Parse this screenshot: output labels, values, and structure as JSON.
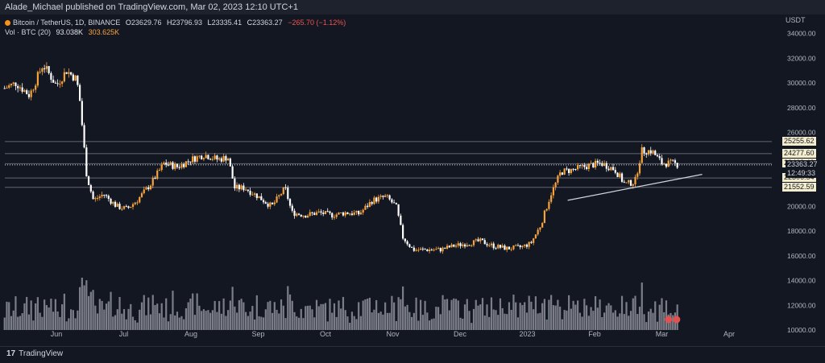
{
  "header": {
    "text": "Alade_Michael published on TradingView.com, Mar 02, 2023 12:10 UTC+1"
  },
  "legend": {
    "symbol": "Bitcoin / TetherUS, 1D, BINANCE",
    "open_label": "O",
    "open": "23629.76",
    "high_label": "H",
    "high": "23796.93",
    "low_label": "L",
    "low": "23335.41",
    "close_label": "C",
    "close": "23363.27",
    "change": "−265.70 (−1.12%)",
    "vol_label": "Vol · BTC (20)",
    "vol_ma": "93.038K",
    "vol_value": "303.625K"
  },
  "axis": {
    "currency": "USDT",
    "y_ticks": [
      "34000.00",
      "32000.00",
      "30000.00",
      "28000.00",
      "26000.00",
      "20000.00",
      "18000.00",
      "16000.00",
      "14000.00",
      "12000.00",
      "10000.00"
    ],
    "y_tick_values": [
      34000,
      32000,
      30000,
      28000,
      26000,
      20000,
      18000,
      16000,
      14000,
      12000,
      10000
    ],
    "x_ticks": [
      "Jun",
      "Jul",
      "Aug",
      "Sep",
      "Oct",
      "Nov",
      "Dec",
      "2023",
      "Feb",
      "Mar",
      "Apr"
    ]
  },
  "price_tags": {
    "levels": [
      {
        "label": "25255.62",
        "value": 25255.62,
        "style": "light"
      },
      {
        "label": "24277.60",
        "value": 24277.6,
        "style": "light"
      },
      {
        "label": "23463.40",
        "value": 23463.4,
        "style": "light"
      },
      {
        "label": "22306.54",
        "value": 22306.54,
        "style": "light"
      },
      {
        "label": "21552.59",
        "value": 21552.59,
        "style": "light"
      }
    ],
    "current_price": "23363.27",
    "countdown": "12:49:33"
  },
  "footer": {
    "brand": "TradingView",
    "logo": "17"
  },
  "colors": {
    "up": "#f7a33c",
    "down": "#ffffff",
    "volume": "#d1d4dc",
    "trendline": "#d1d4dc",
    "level": "#787b86"
  },
  "chart_data": {
    "type": "candlestick",
    "title": "Bitcoin / TetherUS, 1D, BINANCE",
    "ylim": [
      10000,
      34500
    ],
    "x_categories": [
      "Jun",
      "Jul",
      "Aug",
      "Sep",
      "Oct",
      "Nov",
      "Dec",
      "2023",
      "Feb",
      "Mar",
      "Apr"
    ],
    "horizontal_levels": [
      25255.62,
      24277.6,
      23463.4,
      22306.54,
      21552.59
    ],
    "current_price": 23363.27,
    "trendline": [
      {
        "month_index": 7.6,
        "price": 20500
      },
      {
        "month_index": 9.6,
        "price": 22600
      }
    ],
    "price_path": [
      {
        "m": -0.9,
        "p": 34200
      },
      {
        "m": -0.8,
        "p": 29500
      },
      {
        "m": -0.6,
        "p": 30000
      },
      {
        "m": -0.4,
        "p": 29000
      },
      {
        "m": -0.2,
        "p": 31500
      },
      {
        "m": 0.0,
        "p": 29800
      },
      {
        "m": 0.15,
        "p": 31000
      },
      {
        "m": 0.3,
        "p": 30300
      },
      {
        "m": 0.35,
        "p": 28500
      },
      {
        "m": 0.45,
        "p": 22500
      },
      {
        "m": 0.55,
        "p": 20500
      },
      {
        "m": 0.7,
        "p": 21000
      },
      {
        "m": 0.9,
        "p": 20000
      },
      {
        "m": 1.05,
        "p": 19800
      },
      {
        "m": 1.2,
        "p": 20500
      },
      {
        "m": 1.4,
        "p": 21800
      },
      {
        "m": 1.6,
        "p": 23500
      },
      {
        "m": 1.8,
        "p": 23200
      },
      {
        "m": 2.0,
        "p": 23800
      },
      {
        "m": 2.2,
        "p": 24200
      },
      {
        "m": 2.4,
        "p": 23800
      },
      {
        "m": 2.55,
        "p": 24000
      },
      {
        "m": 2.65,
        "p": 21500
      },
      {
        "m": 2.8,
        "p": 21500
      },
      {
        "m": 3.0,
        "p": 20800
      },
      {
        "m": 3.2,
        "p": 20000
      },
      {
        "m": 3.4,
        "p": 21500
      },
      {
        "m": 3.5,
        "p": 19500
      },
      {
        "m": 3.7,
        "p": 19300
      },
      {
        "m": 3.9,
        "p": 19500
      },
      {
        "m": 4.1,
        "p": 19300
      },
      {
        "m": 4.3,
        "p": 19500
      },
      {
        "m": 4.5,
        "p": 19400
      },
      {
        "m": 4.7,
        "p": 20500
      },
      {
        "m": 4.9,
        "p": 20800
      },
      {
        "m": 5.05,
        "p": 20000
      },
      {
        "m": 5.15,
        "p": 17500
      },
      {
        "m": 5.3,
        "p": 16500
      },
      {
        "m": 5.5,
        "p": 16500
      },
      {
        "m": 5.7,
        "p": 16500
      },
      {
        "m": 5.9,
        "p": 16800
      },
      {
        "m": 6.1,
        "p": 17000
      },
      {
        "m": 6.3,
        "p": 17200
      },
      {
        "m": 6.5,
        "p": 16800
      },
      {
        "m": 6.7,
        "p": 16600
      },
      {
        "m": 6.9,
        "p": 16700
      },
      {
        "m": 7.05,
        "p": 17000
      },
      {
        "m": 7.2,
        "p": 18500
      },
      {
        "m": 7.35,
        "p": 21000
      },
      {
        "m": 7.5,
        "p": 22800
      },
      {
        "m": 7.7,
        "p": 23000
      },
      {
        "m": 7.9,
        "p": 23300
      },
      {
        "m": 8.1,
        "p": 23500
      },
      {
        "m": 8.3,
        "p": 23000
      },
      {
        "m": 8.45,
        "p": 21800
      },
      {
        "m": 8.6,
        "p": 22000
      },
      {
        "m": 8.7,
        "p": 24500
      },
      {
        "m": 8.85,
        "p": 24500
      },
      {
        "m": 9.0,
        "p": 23500
      },
      {
        "m": 9.15,
        "p": 23500
      },
      {
        "m": 9.25,
        "p": 23363
      }
    ]
  }
}
